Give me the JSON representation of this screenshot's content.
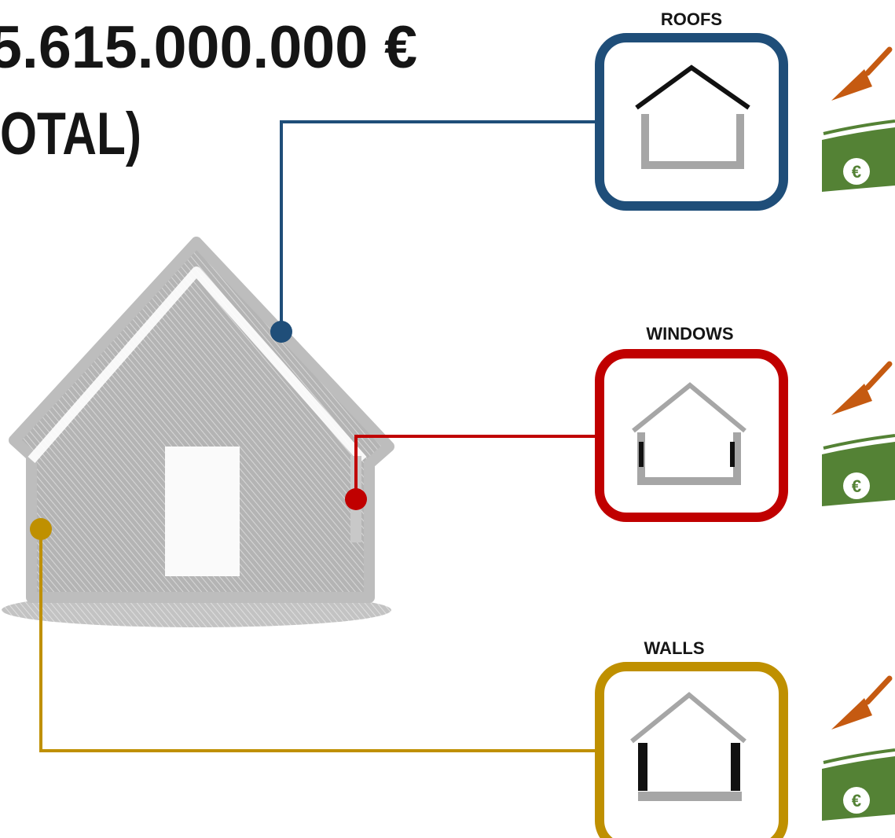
{
  "header": {
    "amount": "5.615.000.000 €",
    "total": "OTAL)"
  },
  "items": [
    {
      "label": "ROOFS"
    },
    {
      "label": "WINDOWS"
    },
    {
      "label": "WALLS"
    }
  ]
}
